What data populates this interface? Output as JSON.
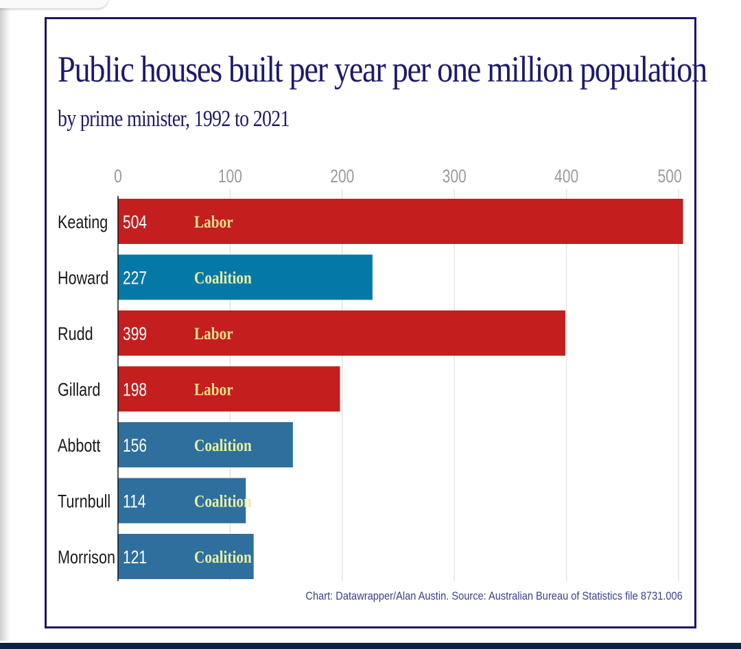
{
  "chart_data": {
    "type": "bar",
    "orientation": "horizontal",
    "title": "Public houses built per year per one million population",
    "subtitle": "by prime minister, 1992 to 2021",
    "xlabel": "",
    "ylabel": "",
    "xlim": [
      0,
      500
    ],
    "x_ticks": [
      0,
      100,
      200,
      300,
      400,
      500
    ],
    "x_tick_labels": [
      "0",
      "100",
      "200",
      "300",
      "400",
      "500"
    ],
    "grid": true,
    "categories": [
      "Keating",
      "Howard",
      "Rudd",
      "Gillard",
      "Abbott",
      "Turnbull",
      "Morrison"
    ],
    "values": [
      504,
      227,
      399,
      198,
      156,
      114,
      121
    ],
    "value_labels": [
      "504",
      "227",
      "399",
      "198",
      "156",
      "114",
      "121"
    ],
    "party": [
      "Labor",
      "Coalition",
      "Labor",
      "Labor",
      "Coalition",
      "Coalition",
      "Coalition"
    ],
    "bar_colors": [
      "#c41e1e",
      "#0479a8",
      "#c41e1e",
      "#c41e1e",
      "#2e6f9e",
      "#2e6f9e",
      "#2e6f9e"
    ],
    "party_label_colors": {
      "Labor": "#f6df8a",
      "Coalition": "#eaf0a0"
    },
    "source": "Chart: Datawrapper/Alan Austin. Source: Australian Bureau of Statistics file 8731.006"
  },
  "colors": {
    "frame": "#1b1464",
    "title": "#1d1a6b",
    "grid": "#e4e4e4",
    "tick_text": "#9a9a9a",
    "axis_line": "#111111"
  }
}
